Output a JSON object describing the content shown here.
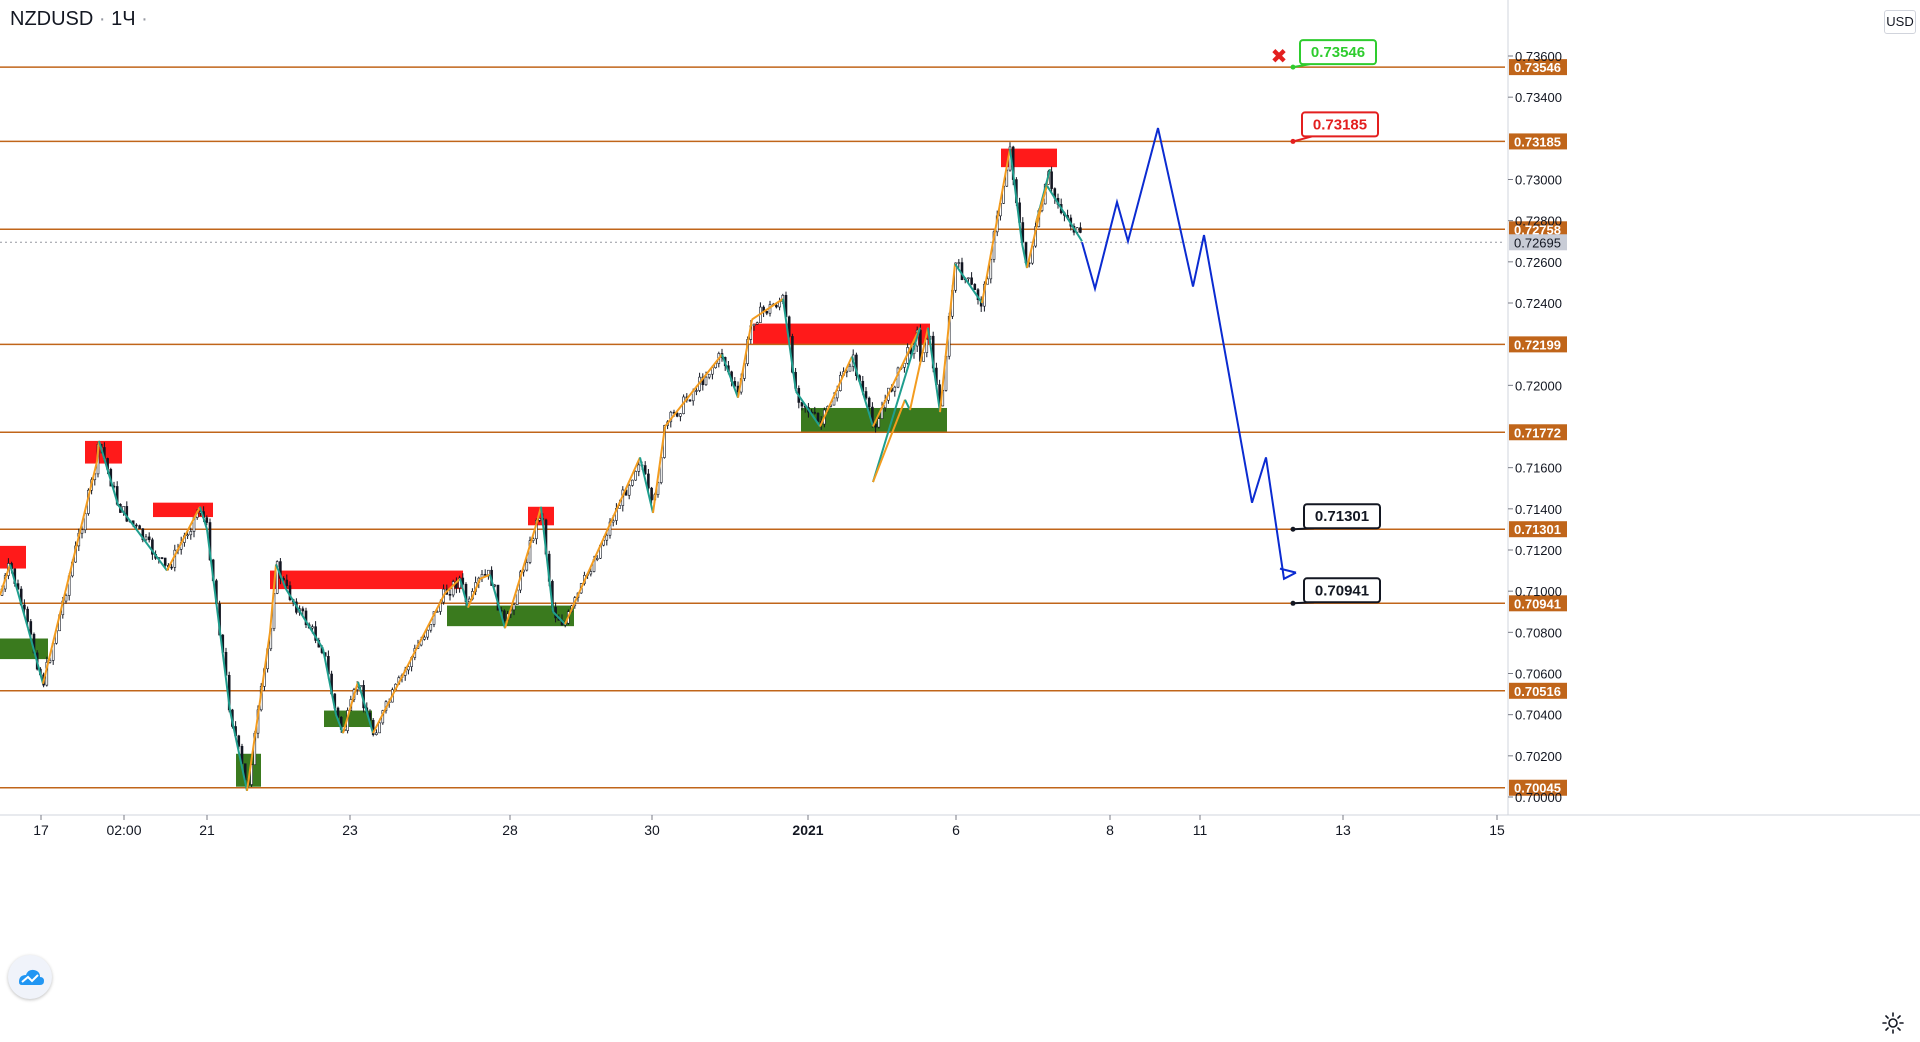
{
  "header": {
    "symbol": "NZDUSD",
    "separator": "·",
    "interval": "1Ч",
    "menu_dot": "·"
  },
  "price_scale": {
    "unit": "USD"
  },
  "colors": {
    "level": "#c0651a",
    "supply": "#ff1a1a",
    "demand": "#3a7a1e",
    "zigzag_up": "#f39c1f",
    "zigzag_down": "#1f9e8e",
    "projection": "#0b2bd1",
    "candle": "#131722",
    "target_high": "#2ecc2e",
    "target_mid": "#e31f1f",
    "target_low": "#131722",
    "cross": "#e31f1f"
  },
  "chart_data": {
    "type": "candlestick",
    "symbol": "NZDUSD",
    "interval": "1Ч",
    "y_axis": {
      "unit": "USD",
      "range": [
        0.6997,
        0.7375
      ],
      "ticks": [
        "0.70000",
        "0.70200",
        "0.70400",
        "0.70600",
        "0.70800",
        "0.71000",
        "0.71200",
        "0.71400",
        "0.71600",
        "0.72000",
        "0.72400",
        "0.72600",
        "0.72800",
        "0.73000",
        "0.73400",
        "0.73600"
      ]
    },
    "x_axis": {
      "ticks": [
        "17",
        "02:00",
        "21",
        "23",
        "28",
        "30",
        "2021",
        "6",
        "8",
        "11",
        "13",
        "15"
      ]
    },
    "current_price": "0.72695",
    "horizontal_levels": [
      "0.73546",
      "0.73185",
      "0.72758",
      "0.72199",
      "0.71772",
      "0.71301",
      "0.70941",
      "0.70516",
      "0.70045"
    ],
    "supply_zones": [
      {
        "from": "Dec 16",
        "to": "Dec 17",
        "low": 0.7111,
        "high": 0.7122
      },
      {
        "from": "Dec 18",
        "to": "Dec 18",
        "low": 0.7162,
        "high": 0.7173
      },
      {
        "from": "Dec 20",
        "to": "Dec 21",
        "low": 0.7136,
        "high": 0.7143
      },
      {
        "from": "Dec 22",
        "to": "Dec 25",
        "low": 0.7101,
        "high": 0.711
      },
      {
        "from": "Dec 29",
        "to": "Dec 29",
        "low": 0.7132,
        "high": 0.7141
      },
      {
        "from": "Dec 31",
        "to": "Jan 4",
        "low": 0.722,
        "high": 0.723
      },
      {
        "from": "Jan 6",
        "to": "Jan 7",
        "low": 0.7306,
        "high": 0.7315
      }
    ],
    "demand_zones": [
      {
        "from": "Dec 16",
        "to": "Dec 17",
        "low": 0.7067,
        "high": 0.7077
      },
      {
        "from": "Dec 21",
        "to": "Dec 21",
        "low": 0.7005,
        "high": 0.7021
      },
      {
        "from": "Dec 23",
        "to": "Dec 23",
        "low": 0.7034,
        "high": 0.7042
      },
      {
        "from": "Dec 26",
        "to": "Dec 28",
        "low": 0.7083,
        "high": 0.7093
      },
      {
        "from": "Dec 31",
        "to": "Jan 4",
        "low": 0.7177,
        "high": 0.7189
      }
    ],
    "zigzag": [
      0.7098,
      0.7113,
      0.7082,
      0.7055,
      0.7163,
      0.7173,
      0.7142,
      0.711,
      0.7141,
      0.713,
      0.7042,
      0.7003,
      0.708,
      0.7113,
      0.7101,
      0.7072,
      0.704,
      0.7031,
      0.7056,
      0.7031,
      0.7066,
      0.7099,
      0.7106,
      0.7092,
      0.7106,
      0.7108,
      0.7082,
      0.7132,
      0.7141,
      0.709,
      0.7084,
      0.7165,
      0.7138,
      0.718,
      0.7215,
      0.7194,
      0.7232,
      0.7242,
      0.7197,
      0.718,
      0.7214,
      0.718,
      0.7228,
      0.7153,
      0.7193,
      0.7188,
      0.7228,
      0.7187,
      0.7259,
      0.724,
      0.7315,
      0.7269,
      0.7257,
      0.7305,
      0.7279,
      0.7297,
      0.727
    ],
    "projection": [
      0.72695,
      0.7247,
      0.7289,
      0.727,
      0.7325,
      0.7248,
      0.7273,
      0.7143,
      0.7165,
      0.7106,
      0.7109
    ],
    "targets": [
      {
        "label": "0.73546",
        "status": "cancelled",
        "marker": "✖"
      },
      {
        "label": "0.73185",
        "status": "resistance"
      },
      {
        "label": "0.71301",
        "status": "target"
      },
      {
        "label": "0.70941",
        "status": "target"
      }
    ]
  }
}
